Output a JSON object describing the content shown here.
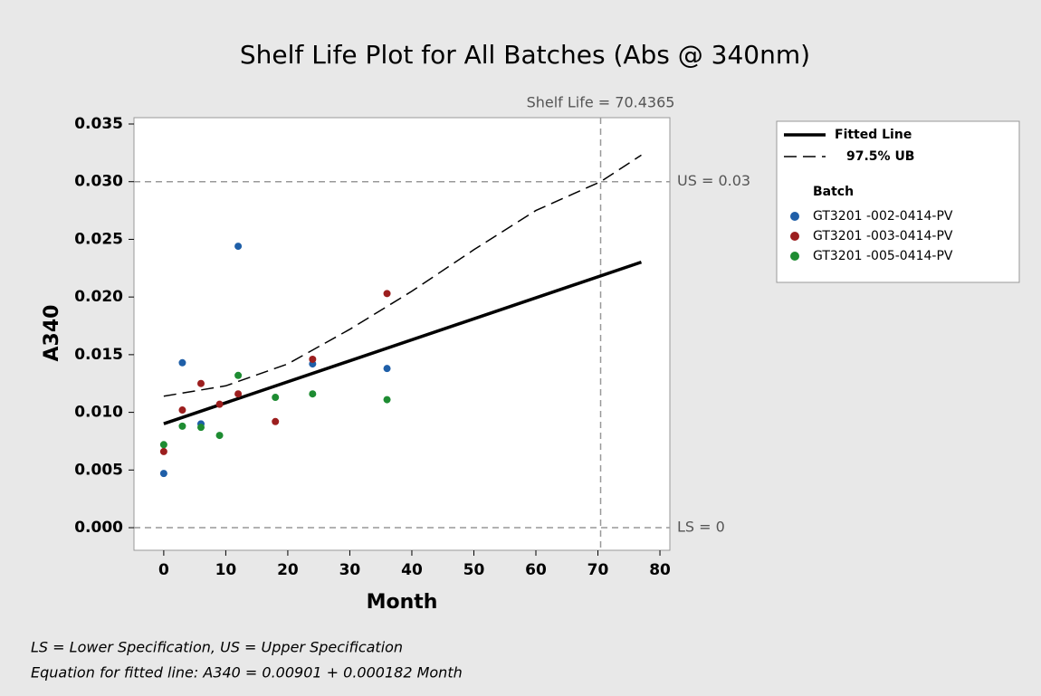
{
  "chart_data": {
    "type": "scatter",
    "title": "Shelf Life Plot for All Batches (Abs @ 340nm)",
    "x_label": "Month",
    "y_label": "A340",
    "xlim": [
      -4.8,
      81.6
    ],
    "ylim": [
      -0.00196,
      0.03555
    ],
    "xticks": [
      0,
      10,
      20,
      30,
      40,
      50,
      60,
      70,
      80
    ],
    "yticks": [
      {
        "value": 0,
        "label": "0.000"
      },
      {
        "value": 0.005,
        "label": "0.005"
      },
      {
        "value": 0.01,
        "label": "0.010"
      },
      {
        "value": 0.015,
        "label": "0.015"
      },
      {
        "value": 0.02,
        "label": "0.020"
      },
      {
        "value": 0.025,
        "label": "0.025"
      },
      {
        "value": 0.03,
        "label": "0.030"
      },
      {
        "value": 0.035,
        "label": "0.035"
      }
    ],
    "legend_title": "Batch",
    "legend_position": "right",
    "lines": [
      {
        "name": "Fitted Line",
        "style": "solid",
        "color": "#000000",
        "x": [
          0,
          77
        ],
        "values": [
          0.00901,
          0.023024
        ]
      },
      {
        "name": "97.5% UB",
        "style": "dashed",
        "color": "#000000",
        "x": [
          0,
          10,
          20,
          30,
          40,
          50,
          60,
          70.4365,
          77
        ],
        "values": [
          0.0114,
          0.0123,
          0.0142,
          0.0172,
          0.0205,
          0.0241,
          0.0275,
          0.03,
          0.0323
        ]
      }
    ],
    "series": [
      {
        "name": "GT3201 -002-0414-PV",
        "color": "#1f5fa8",
        "x": [
          0,
          3,
          6,
          12,
          24,
          36
        ],
        "values": [
          0.0047,
          0.0143,
          0.009,
          0.0244,
          0.0142,
          0.0138
        ]
      },
      {
        "name": "GT3201 -003-0414-PV",
        "color": "#9c1e1e",
        "x": [
          0,
          3,
          6,
          9,
          12,
          18,
          24,
          36
        ],
        "values": [
          0.0066,
          0.0102,
          0.0125,
          0.0107,
          0.0116,
          0.0092,
          0.0146,
          0.0203
        ]
      },
      {
        "name": "GT3201 -005-0414-PV",
        "color": "#1e8c32",
        "x": [
          0,
          3,
          6,
          9,
          12,
          18,
          24,
          36
        ],
        "values": [
          0.0072,
          0.0088,
          0.0087,
          0.008,
          0.0132,
          0.0113,
          0.0116,
          0.0111
        ]
      }
    ],
    "reference_lines": [
      {
        "axis": "y",
        "value": 0.03,
        "label": "US = 0.03"
      },
      {
        "axis": "y",
        "value": 0,
        "label": "LS = 0"
      },
      {
        "axis": "x",
        "value": 70.4365,
        "label": "Shelf Life = 70.4365"
      }
    ],
    "footnotes": [
      "LS = Lower Specification, US = Upper Specification",
      "Equation for fitted line: A340 = 0.00901 + 0.000182 Month"
    ]
  }
}
